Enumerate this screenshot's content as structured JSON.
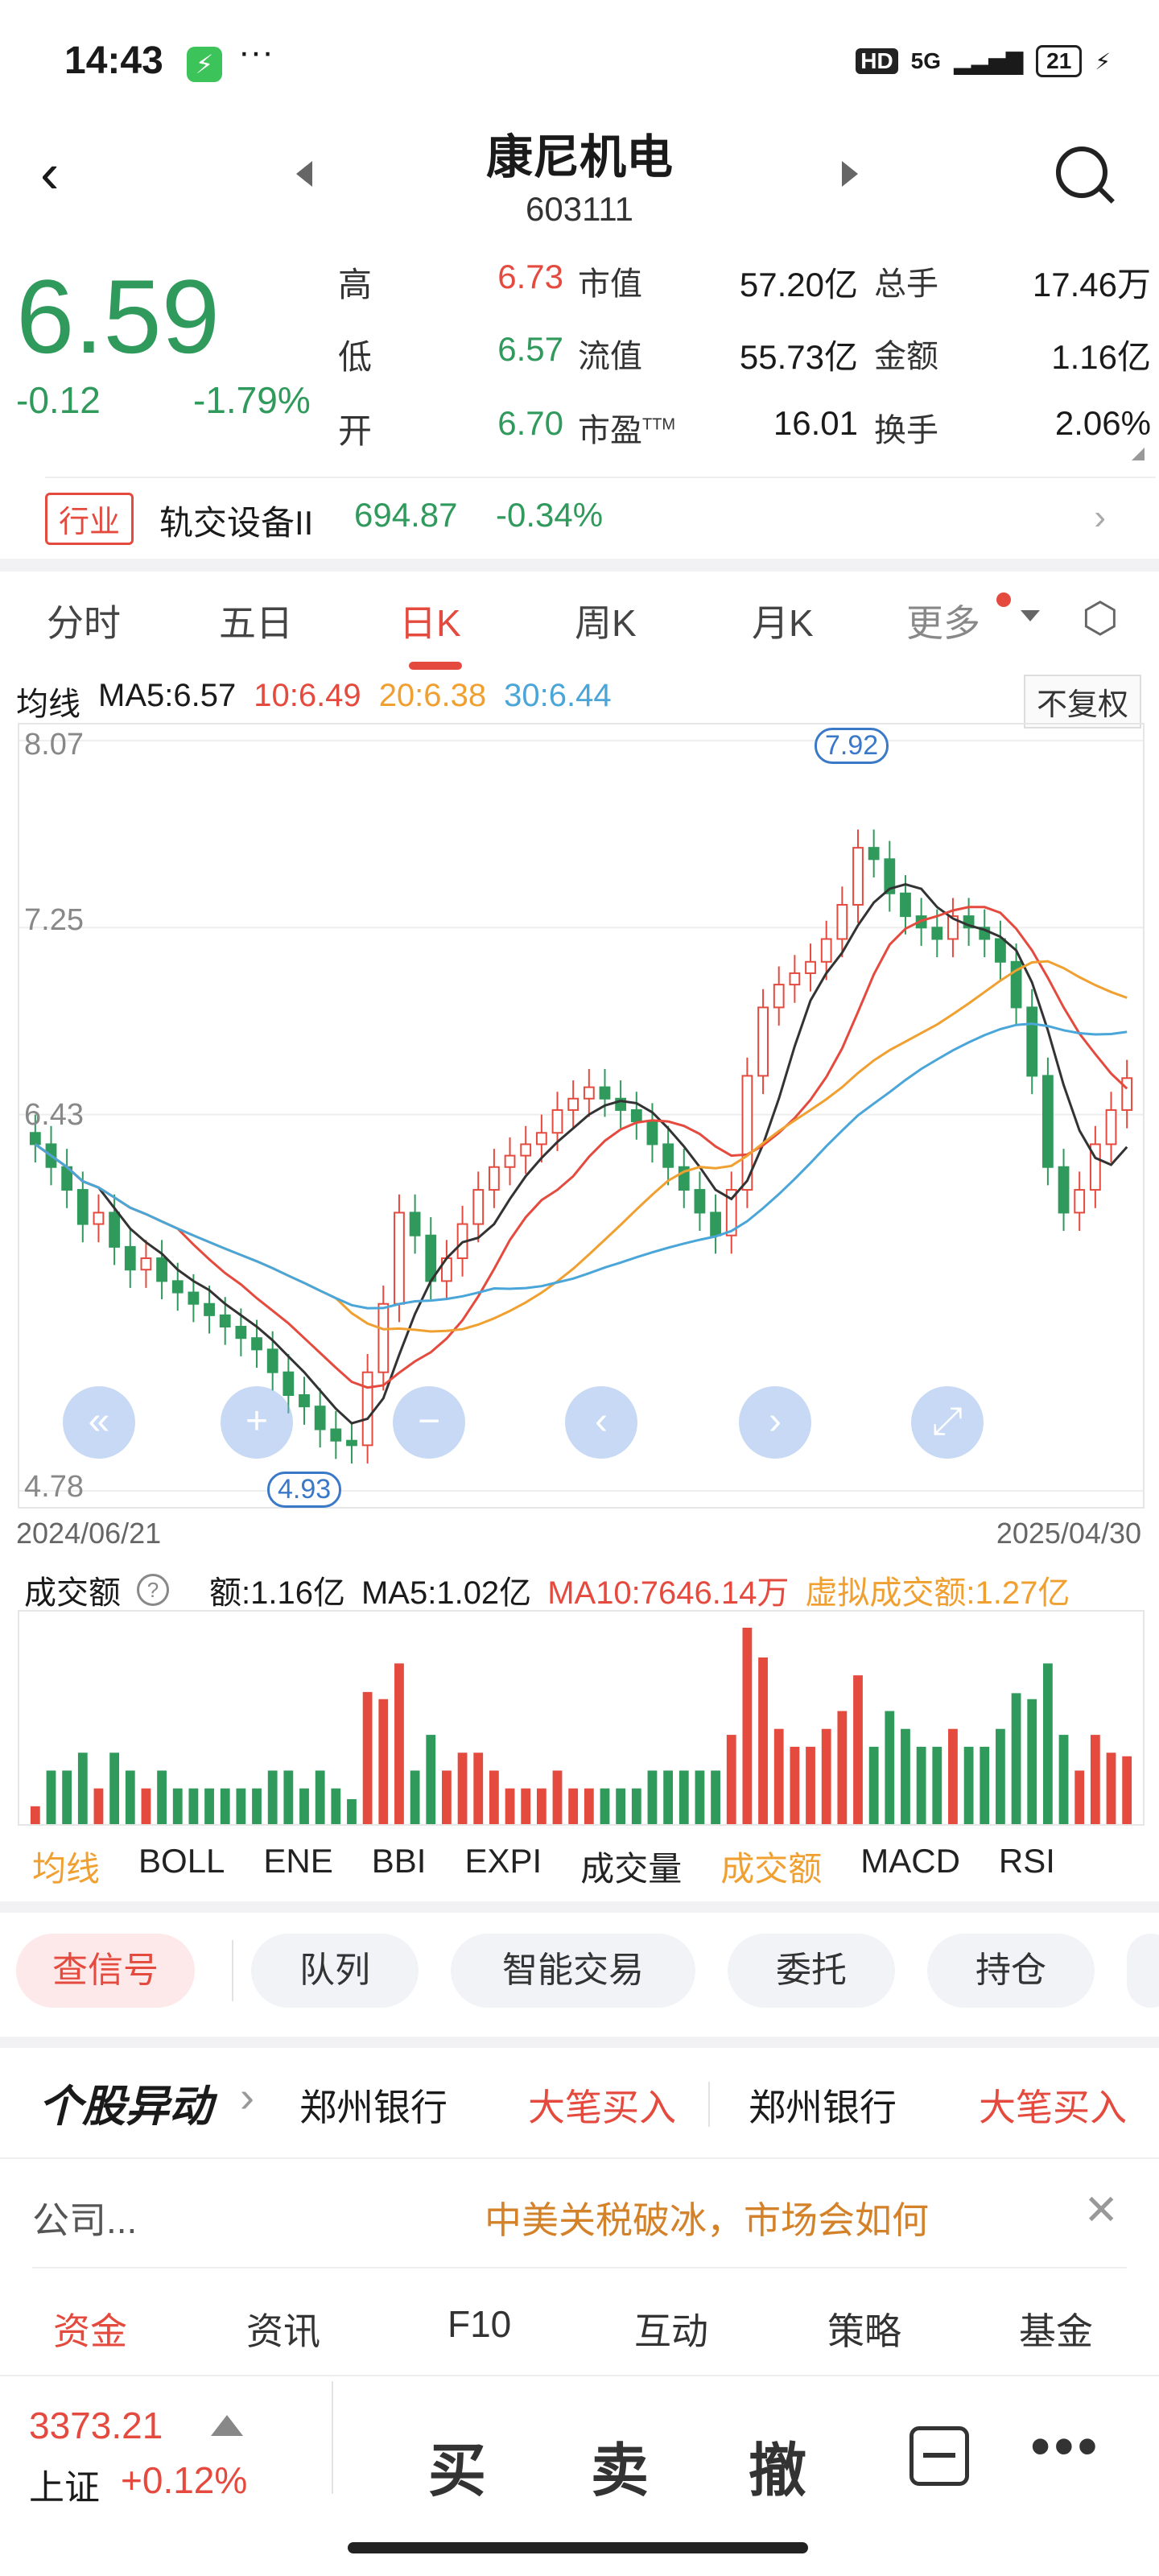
{
  "status_bar": {
    "time": "14:43",
    "dots": "···",
    "hd": "HD",
    "net": "5G",
    "battery": "21"
  },
  "header": {
    "title": "康尼机电",
    "code": "603111"
  },
  "quote": {
    "price": "6.59",
    "change": "-0.12",
    "change_pct": "-1.79%",
    "rows": [
      {
        "l1": "高",
        "v1": "6.73",
        "l2": "市值",
        "v2": "57.20亿",
        "l3": "总手",
        "v3": "17.46万"
      },
      {
        "l1": "低",
        "v1": "6.57",
        "l2": "流值",
        "v2": "55.73亿",
        "l3": "金额",
        "v3": "1.16亿"
      },
      {
        "l1": "开",
        "v1": "6.70",
        "l2": "市盈",
        "v2": "16.01",
        "l3": "换手",
        "v3": "2.06%"
      }
    ],
    "ttm": "TTM"
  },
  "industry": {
    "tag": "行业",
    "name": "轨交设备II",
    "value": "694.87",
    "pct": "-0.34%"
  },
  "tabs": [
    "分时",
    "五日",
    "日K",
    "周K",
    "月K",
    "更多"
  ],
  "ma": {
    "label": "均线",
    "ma5": "MA5:6.57",
    "ma10": "10:6.49",
    "ma20": "20:6.38",
    "ma30": "30:6.44",
    "fq": "不复权"
  },
  "chart_data": {
    "type": "candlestick",
    "y_labels": [
      "8.07",
      "7.25",
      "6.43",
      "4.78"
    ],
    "ylim": [
      4.78,
      8.07
    ],
    "start_date": "2024/06/21",
    "end_date": "2025/04/30",
    "max_label": "7.92",
    "min_label": "4.93",
    "close_series": [
      6.3,
      6.2,
      6.1,
      5.95,
      6.0,
      5.85,
      5.75,
      5.8,
      5.7,
      5.65,
      5.6,
      5.55,
      5.5,
      5.45,
      5.4,
      5.3,
      5.2,
      5.15,
      5.05,
      5.0,
      4.98,
      5.3,
      5.6,
      6.0,
      5.9,
      5.7,
      5.8,
      5.95,
      6.1,
      6.2,
      6.25,
      6.3,
      6.35,
      6.45,
      6.5,
      6.55,
      6.5,
      6.45,
      6.4,
      6.3,
      6.2,
      6.1,
      6.0,
      5.9,
      6.1,
      6.6,
      6.9,
      7.0,
      7.05,
      7.1,
      7.2,
      7.35,
      7.6,
      7.55,
      7.4,
      7.3,
      7.25,
      7.2,
      7.3,
      7.25,
      7.2,
      7.1,
      6.9,
      6.6,
      6.2,
      6.0,
      6.1,
      6.3,
      6.45,
      6.59
    ],
    "volume_label": "成交额",
    "volume_note": "额:1.16亿",
    "volume_ma5": "MA5:1.02亿",
    "volume_ma10": "MA10:7646.14万",
    "volume_virtual": "虚拟成交额:1.27亿"
  },
  "controls": [
    "«",
    "+",
    "−",
    "‹",
    "›",
    "⤢"
  ],
  "indicator_tabs": [
    "均线",
    "BOLL",
    "ENE",
    "BBI",
    "EXPI",
    "成交量",
    "成交额",
    "MACD",
    "RSI"
  ],
  "pills": [
    "查信号",
    "队列",
    "智能交易",
    "委托",
    "持仓"
  ],
  "news": {
    "title": "个股异动",
    "items": [
      {
        "stock": "郑州银行",
        "action": "大笔买入"
      },
      {
        "stock": "郑州银行",
        "action": "大笔买入"
      }
    ],
    "left_text": "公司...",
    "headline": "中美关税破冰，市场会如何"
  },
  "bottom_tabs": [
    "资金",
    "资讯",
    "F10",
    "互动",
    "策略",
    "基金"
  ],
  "index": {
    "value": "3373.21",
    "name": "上证",
    "pct": "+0.12%"
  },
  "actions": {
    "buy": "买",
    "sell": "卖",
    "cancel": "撤",
    "more": "•••"
  }
}
